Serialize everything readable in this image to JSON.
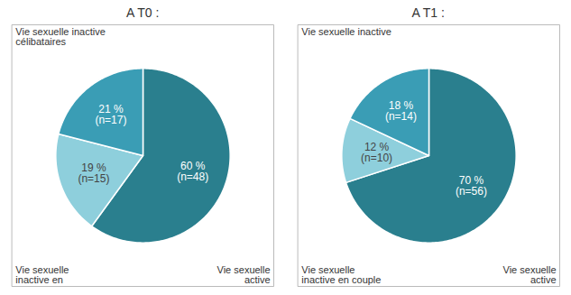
{
  "chart_data": [
    {
      "type": "pie",
      "title": "A T0 :",
      "values": [
        60,
        19,
        21
      ],
      "value_labels": [
        "60 %\n(n=48)",
        "19 %\n(n=15)",
        "21 %\n(n=17)"
      ],
      "colors": [
        "#2a7f8e",
        "#8ecfdc",
        "#3a9db5"
      ],
      "data_labels": true,
      "annotations": [
        "Vie sexuelle inactive\ncélibataires",
        "Vie sexuelle\ninactive en",
        "Vie sexuelle\nactive"
      ]
    },
    {
      "type": "pie",
      "title": "A T1 :",
      "values": [
        70,
        12,
        18
      ],
      "value_labels": [
        "70 %\n(n=56)",
        "12 %\n(n=10)",
        "18 %\n(n=14)"
      ],
      "colors": [
        "#2a7f8e",
        "#8ecfdc",
        "#3a9db5"
      ],
      "data_labels": true,
      "annotations": [
        "Vie sexuelle inactive",
        "Vie sexuelle\ninactive en couple",
        "Vie sexuelle\nactive"
      ]
    }
  ]
}
